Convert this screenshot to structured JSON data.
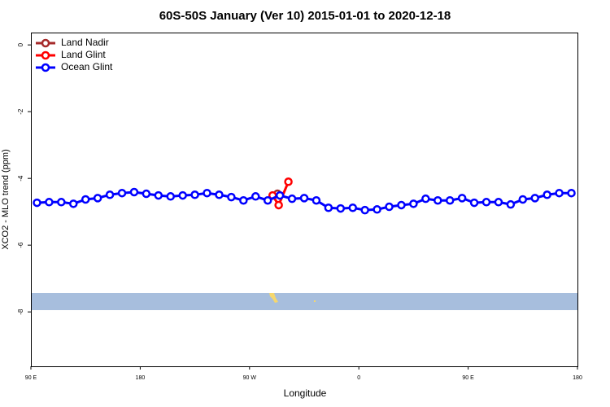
{
  "chart_data": {
    "type": "line",
    "title": "60S-50S January (Ver 10)   2015-01-01 to 2020-12-18",
    "x_label": "Longitude",
    "y_label": "XCO2 - MLO trend (ppm)",
    "xlim": [
      90,
      540
    ],
    "xticks": [
      {
        "value": 90,
        "label": "90 E"
      },
      180,
      {
        "value": 270,
        "label": "90 W"
      },
      {
        "value": 360,
        "label": "0"
      },
      {
        "value": 450,
        "label": "90 E"
      },
      {
        "value": 540,
        "label": "180"
      }
    ],
    "ylim": [
      -9.63,
      0.37
    ],
    "yticks": [
      0,
      -2,
      -4,
      -6,
      -8
    ],
    "legend": "top-left",
    "series": [
      {
        "name": "Land Nadir",
        "color": "#a52a2a",
        "x": [
          293
        ],
        "values": [
          -4.46
        ]
      },
      {
        "name": "Land Glint",
        "color": "#ff0000",
        "x": [
          289,
          294,
          302
        ],
        "values": [
          -4.51,
          -4.8,
          -4.1
        ]
      },
      {
        "name": "Ocean Glint",
        "color": "#0000ff",
        "x": [
          95,
          105,
          115,
          125,
          135,
          145,
          155,
          165,
          175,
          185,
          195,
          205,
          215,
          225,
          235,
          245,
          255,
          265,
          275,
          285,
          295,
          305,
          315,
          325,
          335,
          345,
          355,
          365,
          375,
          385,
          395,
          405,
          415,
          425,
          435,
          445,
          455,
          465,
          475,
          485,
          495,
          505,
          515,
          525,
          535
        ],
        "values": [
          -4.73,
          -4.71,
          -4.71,
          -4.76,
          -4.63,
          -4.59,
          -4.49,
          -4.44,
          -4.41,
          -4.46,
          -4.51,
          -4.54,
          -4.51,
          -4.49,
          -4.44,
          -4.49,
          -4.56,
          -4.66,
          -4.54,
          -4.66,
          -4.51,
          -4.61,
          -4.59,
          -4.66,
          -4.88,
          -4.9,
          -4.88,
          -4.95,
          -4.93,
          -4.85,
          -4.8,
          -4.76,
          -4.61,
          -4.66,
          -4.66,
          -4.59,
          -4.73,
          -4.71,
          -4.71,
          -4.78,
          -4.63,
          -4.59,
          -4.49,
          -4.44,
          -4.44
        ]
      }
    ]
  }
}
